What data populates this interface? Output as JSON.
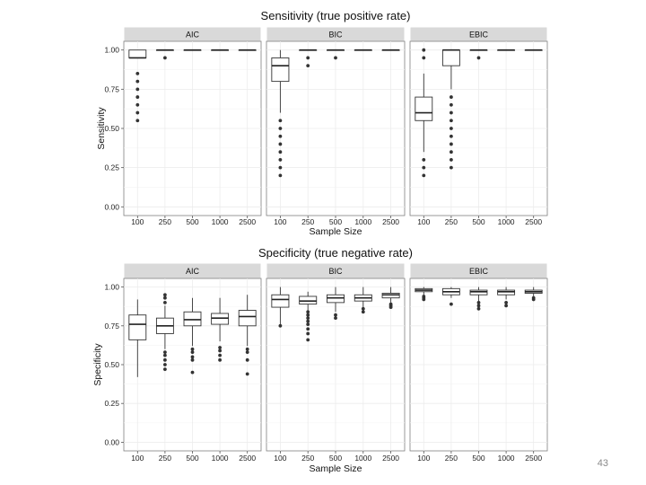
{
  "page": {
    "slide_number": "43"
  },
  "chart_data": [
    {
      "type": "boxplot",
      "title": "Sensitivity (true positive rate)",
      "xlabel": "Sample Size",
      "ylabel": "Sensitivity",
      "ylim": [
        0,
        1
      ],
      "yticks": [
        "0.00",
        "0.25",
        "0.50",
        "0.75",
        "1.00"
      ],
      "categories": [
        "100",
        "250",
        "500",
        "1000",
        "2500"
      ],
      "panels": [
        {
          "name": "AIC",
          "boxes": [
            {
              "q1": 0.95,
              "median": 0.95,
              "q3": 1.0,
              "lo": 0.95,
              "hi": 1.0,
              "outliers": [
                0.55,
                0.6,
                0.65,
                0.7,
                0.75,
                0.8,
                0.85
              ]
            },
            {
              "q1": 1.0,
              "median": 1.0,
              "q3": 1.0,
              "lo": 1.0,
              "hi": 1.0,
              "outliers": [
                0.95
              ]
            },
            {
              "q1": 1.0,
              "median": 1.0,
              "q3": 1.0,
              "lo": 1.0,
              "hi": 1.0,
              "outliers": []
            },
            {
              "q1": 1.0,
              "median": 1.0,
              "q3": 1.0,
              "lo": 1.0,
              "hi": 1.0,
              "outliers": []
            },
            {
              "q1": 1.0,
              "median": 1.0,
              "q3": 1.0,
              "lo": 1.0,
              "hi": 1.0,
              "outliers": []
            }
          ]
        },
        {
          "name": "BIC",
          "boxes": [
            {
              "q1": 0.8,
              "median": 0.9,
              "q3": 0.95,
              "lo": 0.6,
              "hi": 1.0,
              "outliers": [
                0.2,
                0.25,
                0.3,
                0.35,
                0.4,
                0.45,
                0.5,
                0.55
              ]
            },
            {
              "q1": 1.0,
              "median": 1.0,
              "q3": 1.0,
              "lo": 1.0,
              "hi": 1.0,
              "outliers": [
                0.9,
                0.95
              ]
            },
            {
              "q1": 1.0,
              "median": 1.0,
              "q3": 1.0,
              "lo": 1.0,
              "hi": 1.0,
              "outliers": [
                0.95
              ]
            },
            {
              "q1": 1.0,
              "median": 1.0,
              "q3": 1.0,
              "lo": 1.0,
              "hi": 1.0,
              "outliers": []
            },
            {
              "q1": 1.0,
              "median": 1.0,
              "q3": 1.0,
              "lo": 1.0,
              "hi": 1.0,
              "outliers": []
            }
          ]
        },
        {
          "name": "EBIC",
          "boxes": [
            {
              "q1": 0.55,
              "median": 0.6,
              "q3": 0.7,
              "lo": 0.35,
              "hi": 0.85,
              "outliers": [
                0.2,
                0.25,
                0.3,
                0.95,
                1.0
              ]
            },
            {
              "q1": 0.9,
              "median": 1.0,
              "q3": 1.0,
              "lo": 0.75,
              "hi": 1.0,
              "outliers": [
                0.25,
                0.3,
                0.35,
                0.4,
                0.45,
                0.5,
                0.55,
                0.6,
                0.65,
                0.7
              ]
            },
            {
              "q1": 1.0,
              "median": 1.0,
              "q3": 1.0,
              "lo": 1.0,
              "hi": 1.0,
              "outliers": [
                0.95
              ]
            },
            {
              "q1": 1.0,
              "median": 1.0,
              "q3": 1.0,
              "lo": 1.0,
              "hi": 1.0,
              "outliers": []
            },
            {
              "q1": 1.0,
              "median": 1.0,
              "q3": 1.0,
              "lo": 1.0,
              "hi": 1.0,
              "outliers": []
            }
          ]
        }
      ]
    },
    {
      "type": "boxplot",
      "title": "Specificity (true negative rate)",
      "xlabel": "Sample Size",
      "ylabel": "Specificity",
      "ylim": [
        0,
        1
      ],
      "yticks": [
        "0.00",
        "0.25",
        "0.50",
        "0.75",
        "1.00"
      ],
      "categories": [
        "100",
        "250",
        "500",
        "1000",
        "2500"
      ],
      "panels": [
        {
          "name": "AIC",
          "boxes": [
            {
              "q1": 0.66,
              "median": 0.76,
              "q3": 0.82,
              "lo": 0.42,
              "hi": 0.92,
              "outliers": []
            },
            {
              "q1": 0.7,
              "median": 0.75,
              "q3": 0.8,
              "lo": 0.6,
              "hi": 0.88,
              "outliers": [
                0.47,
                0.5,
                0.53,
                0.56,
                0.58,
                0.9,
                0.93,
                0.95
              ]
            },
            {
              "q1": 0.75,
              "median": 0.79,
              "q3": 0.84,
              "lo": 0.62,
              "hi": 0.93,
              "outliers": [
                0.45,
                0.53,
                0.55,
                0.58,
                0.6
              ]
            },
            {
              "q1": 0.76,
              "median": 0.8,
              "q3": 0.83,
              "lo": 0.65,
              "hi": 0.93,
              "outliers": [
                0.53,
                0.56,
                0.59,
                0.61
              ]
            },
            {
              "q1": 0.75,
              "median": 0.81,
              "q3": 0.85,
              "lo": 0.62,
              "hi": 0.95,
              "outliers": [
                0.44,
                0.53,
                0.58,
                0.6
              ]
            }
          ]
        },
        {
          "name": "BIC",
          "boxes": [
            {
              "q1": 0.87,
              "median": 0.92,
              "q3": 0.95,
              "lo": 0.75,
              "hi": 1.0,
              "outliers": [
                0.75
              ]
            },
            {
              "q1": 0.89,
              "median": 0.91,
              "q3": 0.94,
              "lo": 0.85,
              "hi": 0.97,
              "outliers": [
                0.66,
                0.7,
                0.73,
                0.76,
                0.78,
                0.8,
                0.82,
                0.84
              ]
            },
            {
              "q1": 0.9,
              "median": 0.93,
              "q3": 0.95,
              "lo": 0.84,
              "hi": 1.0,
              "outliers": [
                0.8,
                0.82
              ]
            },
            {
              "q1": 0.91,
              "median": 0.93,
              "q3": 0.95,
              "lo": 0.87,
              "hi": 1.0,
              "outliers": [
                0.84,
                0.86
              ]
            },
            {
              "q1": 0.93,
              "median": 0.95,
              "q3": 0.96,
              "lo": 0.9,
              "hi": 1.0,
              "outliers": [
                0.87,
                0.88,
                0.89
              ]
            }
          ]
        },
        {
          "name": "EBIC",
          "boxes": [
            {
              "q1": 0.97,
              "median": 0.98,
              "q3": 0.99,
              "lo": 0.95,
              "hi": 1.0,
              "outliers": [
                0.92,
                0.93,
                0.94
              ]
            },
            {
              "q1": 0.95,
              "median": 0.97,
              "q3": 0.99,
              "lo": 0.93,
              "hi": 1.0,
              "outliers": [
                0.89
              ]
            },
            {
              "q1": 0.95,
              "median": 0.97,
              "q3": 0.98,
              "lo": 0.91,
              "hi": 1.0,
              "outliers": [
                0.86,
                0.88,
                0.9
              ]
            },
            {
              "q1": 0.95,
              "median": 0.97,
              "q3": 0.98,
              "lo": 0.92,
              "hi": 1.0,
              "outliers": [
                0.88,
                0.9
              ]
            },
            {
              "q1": 0.96,
              "median": 0.97,
              "q3": 0.98,
              "lo": 0.94,
              "hi": 1.0,
              "outliers": [
                0.92,
                0.93
              ]
            }
          ]
        }
      ]
    }
  ]
}
